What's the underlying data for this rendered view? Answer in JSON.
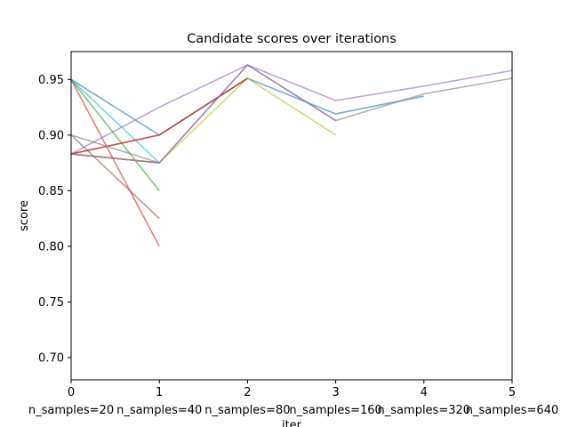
{
  "chart_data": {
    "type": "line",
    "title": "Candidate scores over iterations",
    "xlabel": "iter",
    "ylabel": "score",
    "x_ticks": [
      0,
      1,
      2,
      3,
      4,
      5
    ],
    "x_tick_labels_secondary": [
      "n_samples=20",
      "n_samples=40",
      "n_samples=80",
      "n_samples=160",
      "n_samples=320",
      "n_samples=640"
    ],
    "y_ticks": [
      0.7,
      0.75,
      0.8,
      0.85,
      0.9,
      0.95
    ],
    "y_tick_labels": [
      "0.70",
      "0.75",
      "0.80",
      "0.85",
      "0.90",
      "0.95"
    ],
    "xlim": [
      0,
      5
    ],
    "ylim": [
      0.68,
      0.975
    ],
    "grid": false,
    "series": [
      {
        "color": "#1f77b4",
        "x": [
          0,
          1,
          2,
          3,
          4
        ],
        "values": [
          0.95,
          0.9,
          0.951,
          0.919,
          0.935
        ]
      },
      {
        "color": "#ff7f0e",
        "x": [
          0,
          1
        ],
        "values": [
          0.883,
          0.875
        ]
      },
      {
        "color": "#2ca02c",
        "x": [
          0,
          1
        ],
        "values": [
          0.95,
          0.85
        ]
      },
      {
        "color": "#d62728",
        "x": [
          0,
          1
        ],
        "values": [
          0.95,
          0.8
        ]
      },
      {
        "color": "#9467bd",
        "x": [
          0,
          1,
          2,
          3,
          4,
          5
        ],
        "values": [
          0.883,
          0.925,
          0.963,
          0.931,
          0.944,
          0.958
        ]
      },
      {
        "color": "#8c564b",
        "x": [
          0,
          1
        ],
        "values": [
          0.9,
          0.825
        ]
      },
      {
        "color": "#e377c2",
        "x": [
          0,
          1
        ],
        "values": [
          0.883,
          0.875
        ]
      },
      {
        "color": "#7f7f7f",
        "x": [
          0,
          1,
          2,
          3,
          4,
          5
        ],
        "values": [
          0.883,
          0.875,
          0.963,
          0.913,
          0.937,
          0.951
        ]
      },
      {
        "color": "#bcbd22",
        "x": [
          0,
          1,
          2,
          3
        ],
        "values": [
          0.883,
          0.875,
          0.951,
          0.9
        ]
      },
      {
        "color": "#17becf",
        "x": [
          0,
          1
        ],
        "values": [
          0.95,
          0.875
        ]
      },
      {
        "color": "#8c564b",
        "x": [
          0,
          1,
          2
        ],
        "values": [
          0.883,
          0.9,
          0.951
        ]
      },
      {
        "color": "#d62728",
        "x": [
          0,
          1,
          2
        ],
        "values": [
          0.883,
          0.9,
          0.951
        ]
      },
      {
        "color": "#7f7f7f",
        "x": [
          0,
          1
        ],
        "values": [
          0.9,
          0.875
        ]
      },
      {
        "color": "#9467bd",
        "x": [
          0,
          1,
          2,
          3
        ],
        "values": [
          0.883,
          0.875,
          0.963,
          0.913
        ]
      }
    ]
  }
}
